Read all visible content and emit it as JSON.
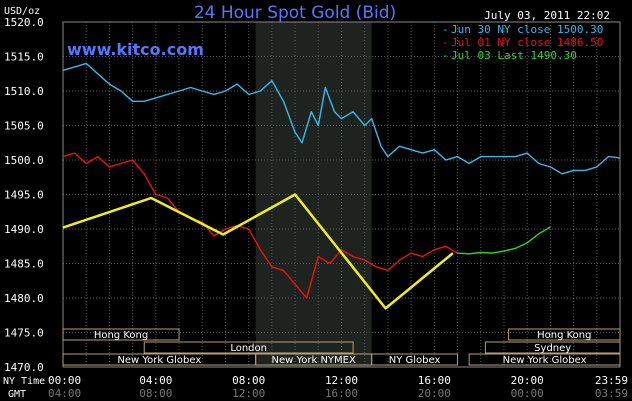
{
  "header": {
    "title": "24 Hour Spot Gold (Bid)",
    "units": "USD/oz",
    "date": "July 03, 2011 22:02",
    "watermark": "www.kitco.com"
  },
  "legend": [
    {
      "marker": "-",
      "text": "Jun 30 NY close 1500.30",
      "color": "#33bbee"
    },
    {
      "marker": "-",
      "text": "Jul 01 NY close 1486.50",
      "color": "#ee1111"
    },
    {
      "marker": "-",
      "text": "Jul 03 Last 1490.30",
      "color": "#22dd22"
    }
  ],
  "time_rows": {
    "ny_label": "NY Time",
    "gmt_label": "GMT"
  },
  "chart_data": {
    "type": "line",
    "title": "24 Hour Spot Gold (Bid)",
    "ylabel": "USD/oz",
    "xlim": [
      0,
      24
    ],
    "ylim": [
      1470,
      1520
    ],
    "y_ticks": [
      "1520.0",
      "1515.0",
      "1510.0",
      "1505.0",
      "1500.0",
      "1495.0",
      "1490.0",
      "1485.0",
      "1480.0",
      "1475.0",
      "1470.0"
    ],
    "x_ticks_ny": [
      {
        "x": 0,
        "label": "00:00"
      },
      {
        "x": 4,
        "label": "04:00"
      },
      {
        "x": 8,
        "label": "08:00"
      },
      {
        "x": 12,
        "label": "12:00"
      },
      {
        "x": 16,
        "label": "16:00"
      },
      {
        "x": 20,
        "label": "20:00"
      },
      {
        "x": 24,
        "label": "23:59"
      }
    ],
    "x_ticks_gmt": [
      {
        "x": 0,
        "label": "04:00"
      },
      {
        "x": 4,
        "label": "08:00"
      },
      {
        "x": 8,
        "label": "12:00"
      },
      {
        "x": 12,
        "label": "16:00"
      },
      {
        "x": 16,
        "label": "20:00"
      },
      {
        "x": 20,
        "label": "00:00"
      },
      {
        "x": 24,
        "label": "03:59"
      }
    ],
    "highlight_range": [
      8.3,
      13.3
    ],
    "grid": true,
    "series": [
      {
        "name": "Jun 30 NY close 1500.30",
        "color": "#33bbee",
        "x": [
          0,
          0.5,
          1,
          1.5,
          2,
          2.5,
          3,
          3.5,
          4,
          4.5,
          5,
          5.5,
          6,
          6.5,
          7,
          7.5,
          8,
          8.5,
          9,
          9.5,
          10,
          10.3,
          10.7,
          11,
          11.3,
          11.7,
          12,
          12.5,
          13,
          13.3,
          13.7,
          14,
          14.5,
          15,
          15.5,
          16,
          16.5,
          17,
          17.5,
          18,
          18.5,
          19,
          19.5,
          20,
          20.5,
          21,
          21.5,
          22,
          22.5,
          23,
          23.5,
          24
        ],
        "y": [
          1513,
          1513.5,
          1514,
          1512.5,
          1511,
          1510,
          1508.5,
          1508.5,
          1509,
          1509.5,
          1510,
          1510.5,
          1510,
          1509.5,
          1510,
          1511,
          1509.5,
          1510,
          1511.5,
          1508.5,
          1504,
          1502.5,
          1507,
          1505,
          1510.5,
          1507,
          1506,
          1507,
          1505,
          1506,
          1502,
          1500.5,
          1502,
          1501.5,
          1501,
          1501.5,
          1500,
          1500.5,
          1499.5,
          1500.5,
          1500.5,
          1500.5,
          1500.5,
          1501,
          1499.5,
          1499,
          1498,
          1498.5,
          1498.5,
          1499,
          1500.5,
          1500.3
        ]
      },
      {
        "name": "Jul 01 NY close 1486.50",
        "color": "#ee1111",
        "x": [
          0,
          0.5,
          1,
          1.5,
          2,
          2.5,
          3,
          3.5,
          4,
          4.5,
          5,
          5.5,
          6,
          6.5,
          7,
          7.5,
          8,
          8.5,
          9,
          9.5,
          10,
          10.5,
          11,
          11.5,
          12,
          12.5,
          13,
          13.5,
          14,
          14.5,
          15,
          15.5,
          16,
          16.5,
          17
        ],
        "y": [
          1500.5,
          1501,
          1499.5,
          1500.5,
          1499,
          1499.5,
          1500,
          1498,
          1495,
          1494.5,
          1492.5,
          1491.5,
          1491,
          1489,
          1490,
          1490.5,
          1490,
          1487,
          1484.5,
          1484,
          1482,
          1480,
          1486,
          1485,
          1487,
          1486,
          1485.5,
          1484.5,
          1484,
          1485.5,
          1486.5,
          1486,
          1487,
          1487.5,
          1486.5
        ]
      },
      {
        "name": "Jul 03 Last 1490.30",
        "color": "#22dd22",
        "x": [
          17,
          17.5,
          18,
          18.5,
          19,
          19.5,
          20,
          20.5,
          21
        ],
        "y": [
          1486.5,
          1486.4,
          1486.6,
          1486.5,
          1486.8,
          1487.2,
          1488,
          1489.3,
          1490.3
        ]
      },
      {
        "name": "",
        "color": "#eeee22",
        "x": [
          0,
          3.8,
          6.9,
          10,
          13.9,
          16.8
        ],
        "y": [
          1490.2,
          1494.5,
          1489.2,
          1495,
          1478.5,
          1486.5
        ]
      }
    ]
  },
  "sessions": {
    "row1": [
      {
        "label": "Hong Kong",
        "x0": 0,
        "x1": 5
      },
      {
        "label": "Hong Kong",
        "x0": 19.2,
        "x1": 24
      }
    ],
    "row2": [
      {
        "label": "London",
        "x0": 3.5,
        "x1": 12.5
      },
      {
        "label": "Sydney",
        "x0": 18.2,
        "x1": 24
      }
    ],
    "row3": [
      {
        "label": "New York Globex",
        "x0": 0,
        "x1": 8.3
      },
      {
        "label": "New York NYMEX",
        "x0": 8.3,
        "x1": 13.3
      },
      {
        "label": "NY Globex",
        "x0": 13.3,
        "x1": 17
      },
      {
        "label": "New York Globex",
        "x0": 17.5,
        "x1": 24
      }
    ]
  }
}
